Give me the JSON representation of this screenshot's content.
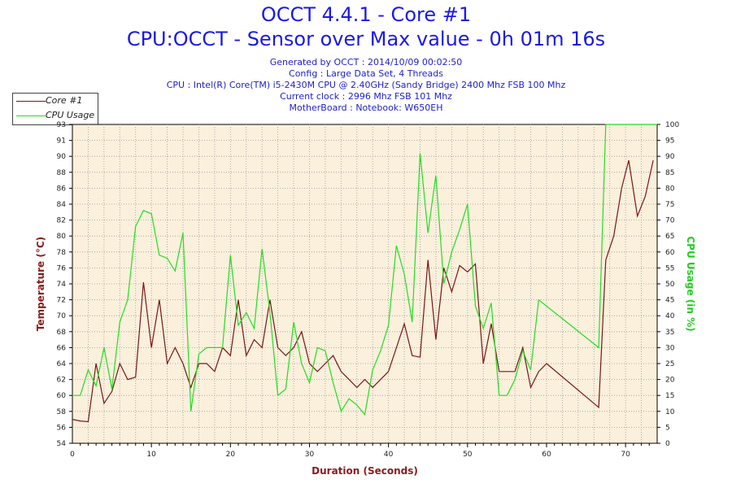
{
  "header": {
    "title": "OCCT 4.4.1 - Core #1",
    "subtitle": "CPU:OCCT - Sensor over Max value - 0h 01m 16s",
    "info": [
      "Generated by OCCT : 2014/10/09 00:02:50",
      "Config : Large Data Set, 4 Threads",
      "CPU : Intel(R) Core(TM) i5-2430M CPU @ 2.40GHz (Sandy Bridge) 2400 Mhz FSB 100 Mhz",
      "Current clock : 2996 Mhz FSB 101 Mhz",
      "MotherBoard : Notebook: W650EH"
    ]
  },
  "legend": {
    "items": [
      {
        "label": "Core #1",
        "color": "#7a1515"
      },
      {
        "label": "CPU Usage",
        "color": "#22dd22"
      }
    ]
  },
  "chart_data": {
    "type": "line",
    "xlabel": "Duration (Seconds)",
    "ylabel": "Temperature (°C)",
    "ylabel_right": "CPU Usage (in %)",
    "xlim": [
      0,
      74
    ],
    "ylim": [
      54,
      94
    ],
    "ylim_right": [
      0,
      100
    ],
    "x_ticks": [
      "0",
      "10",
      "20",
      "30",
      "40",
      "50",
      "60",
      "70"
    ],
    "y_ticks": [
      "54",
      "56",
      "58",
      "60",
      "62",
      "64",
      "66",
      "68",
      "70",
      "72",
      "74",
      "76",
      "78",
      "80",
      "82",
      "84",
      "86",
      "88",
      "90",
      "91",
      "93"
    ],
    "y_ticks_right": [
      "0",
      "5",
      "10",
      "15",
      "20",
      "25",
      "30",
      "35",
      "40",
      "45",
      "50",
      "55",
      "60",
      "65",
      "70",
      "75",
      "80",
      "85",
      "90",
      "95",
      "100"
    ],
    "grid": true,
    "legend_position": "top-left",
    "colors": {
      "plot_bg": "#fbf0dc",
      "grid": "#9a9a9a",
      "temp": "#7a1515",
      "usage": "#22dd22",
      "temp_axis": "#8b1a1a",
      "usage_axis": "#22cc22",
      "x_axis": "#8b1a1a"
    },
    "series": [
      {
        "name": "Core #1",
        "axis": "left",
        "x": [
          0,
          1,
          2,
          3,
          4,
          5,
          6,
          7,
          8,
          9,
          10,
          11,
          12,
          13,
          14,
          15,
          16,
          17,
          18,
          19,
          20,
          21,
          22,
          23,
          24,
          25,
          26,
          27,
          28,
          29,
          30,
          31,
          32,
          33,
          34,
          35,
          36,
          37,
          38,
          39,
          40,
          41,
          42,
          43,
          44,
          45,
          46,
          47,
          48,
          49,
          50,
          51,
          52,
          53,
          54,
          55,
          56,
          57,
          58,
          59,
          60,
          66.6,
          67.5,
          68.5,
          69.5,
          70.4,
          71.5,
          72.5,
          73.5
        ],
        "values": [
          57,
          56.8,
          56.7,
          64,
          59,
          60.5,
          64,
          62,
          62.3,
          74.2,
          66,
          72,
          64,
          66,
          64,
          61,
          64,
          64,
          63,
          66,
          65,
          72,
          65,
          67,
          66,
          72,
          66,
          65,
          66,
          68,
          64,
          63,
          64,
          65,
          63,
          62,
          61,
          62,
          61,
          62,
          63,
          66,
          69,
          65,
          64.8,
          77,
          67,
          76,
          73,
          76.3,
          75.5,
          76.5,
          64,
          69,
          63,
          63,
          63,
          66,
          61,
          63,
          64,
          58.5,
          77,
          80,
          86,
          89.5,
          82.5,
          85,
          89.5
        ]
      },
      {
        "name": "CPU Usage",
        "axis": "right",
        "x": [
          0,
          1,
          2,
          3,
          4,
          5,
          6,
          7,
          8,
          9,
          10,
          11,
          12,
          13,
          14,
          15,
          16,
          17,
          18,
          19,
          20,
          21,
          22,
          23,
          24,
          25,
          26,
          27,
          28,
          29,
          30,
          31,
          32,
          33,
          34,
          35,
          36,
          37,
          38,
          39,
          40,
          41,
          42,
          43,
          44,
          45,
          46,
          47,
          48,
          49,
          50,
          51,
          52,
          53,
          54,
          55,
          56,
          57,
          58,
          59,
          66.6,
          67.5,
          74
        ],
        "values": [
          15,
          15,
          23,
          18,
          30,
          17,
          38,
          45,
          68,
          73,
          72,
          59,
          58,
          54,
          66,
          10,
          28,
          30,
          30,
          30,
          59,
          37,
          41,
          36,
          61,
          41,
          15,
          17,
          38,
          25,
          19,
          30,
          29,
          19,
          10,
          14,
          12,
          9,
          23,
          29,
          37,
          62,
          53,
          38,
          91,
          66,
          84,
          50,
          60,
          67,
          75,
          43,
          36,
          44,
          15,
          15,
          20,
          29,
          23,
          45,
          30,
          100,
          100
        ]
      }
    ]
  }
}
